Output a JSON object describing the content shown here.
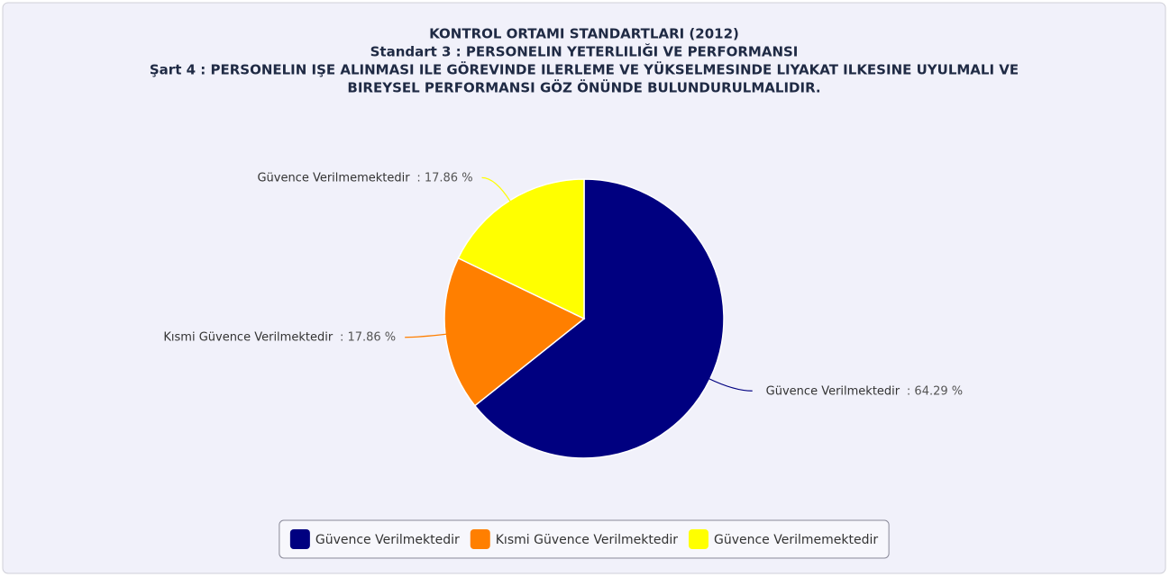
{
  "chart_data": {
    "type": "pie",
    "title": [
      "KONTROL ORTAMI STANDARTLARI (2012)",
      "Standart 3 : PERSONELIN YETERLILIĞI VE PERFORMANSI",
      "Şart 4 : PERSONELIN IŞE ALINMASI ILE GÖREVINDE ILERLEME VE YÜKSELMESINDE LIYAKAT ILKESINE UYULMALI VE",
      "BIREYSEL PERFORMANSI GÖZ ÖNÜNDE BULUNDURULMALIDIR."
    ],
    "categories": [
      "Güvence Verilmektedir",
      "Kısmi Güvence Verilmektedir",
      "Güvence Verilmemektedir"
    ],
    "values": [
      64.29,
      17.86,
      17.86
    ],
    "value_labels": [
      ": 64.29 %",
      ": 17.86 %",
      ": 17.86 %"
    ],
    "colors": [
      "#000080",
      "#ff7f00",
      "#ffff00"
    ],
    "legend": "bottom"
  }
}
